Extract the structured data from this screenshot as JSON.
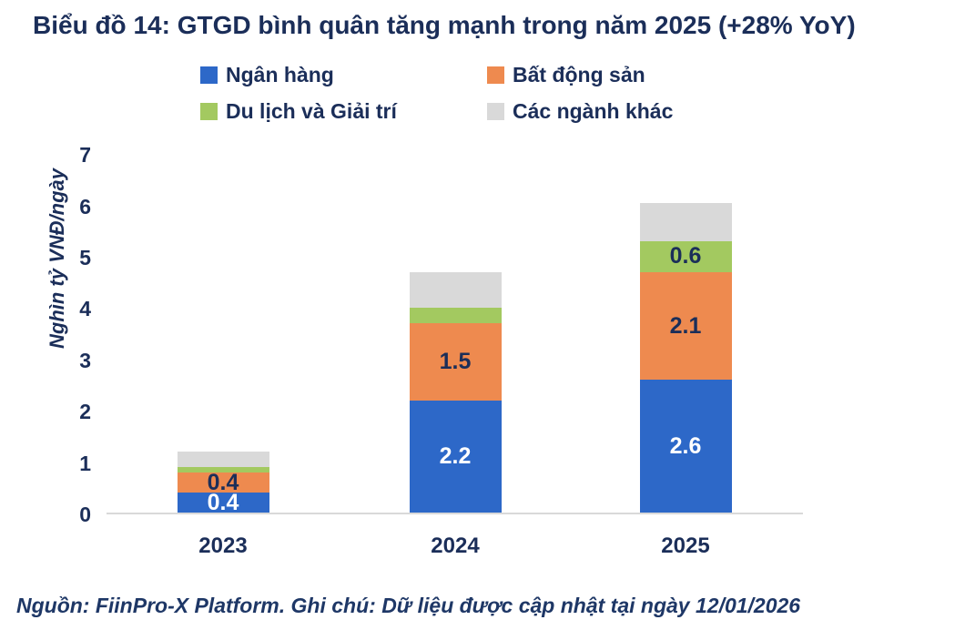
{
  "title": "Biểu đồ 14: GTGD bình quân tăng mạnh trong năm 2025 (+28% YoY)",
  "footer": "Nguồn: FiinPro-X Platform. Ghi chú: Dữ liệu được cập nhật tại ngày 12/01/2026",
  "colors": {
    "navy_text": "#1b2e59",
    "axis_line": "#d9d9d9",
    "white_label": "#ffffff"
  },
  "chart_data": {
    "type": "bar",
    "stacked": true,
    "title": "Biểu đồ 14: GTGD bình quân tăng mạnh trong năm 2025 (+28% YoY)",
    "categories": [
      "2023",
      "2024",
      "2025"
    ],
    "series": [
      {
        "name": "Ngân hàng",
        "color": "#2d68c8",
        "values": [
          0.4,
          2.2,
          2.6
        ],
        "labels": [
          "0.4",
          "2.2",
          "2.6"
        ],
        "label_color": "#ffffff"
      },
      {
        "name": "Bất động sản",
        "color": "#ee8a4f",
        "values": [
          0.4,
          1.5,
          2.1
        ],
        "labels": [
          "0.4",
          "1.5",
          "2.1"
        ],
        "label_color": "#1b2e59"
      },
      {
        "name": "Du lịch và Giải trí",
        "color": "#a3c960",
        "values": [
          0.1,
          0.3,
          0.6
        ],
        "labels": [
          null,
          null,
          "0.6"
        ],
        "label_color": "#1b2e59"
      },
      {
        "name": "Các ngành khác",
        "color": "#d9d9d9",
        "values": [
          0.3,
          0.7,
          0.75
        ],
        "labels": [
          null,
          null,
          null
        ],
        "label_color": "#1b2e59"
      }
    ],
    "xlabel": "",
    "ylabel": "Nghìn tỷ VNĐ/ngày",
    "yticks": [
      0,
      1,
      2,
      3,
      4,
      5,
      6,
      7
    ],
    "ylim": [
      0,
      7
    ],
    "legend_position": "top",
    "grid": false
  }
}
